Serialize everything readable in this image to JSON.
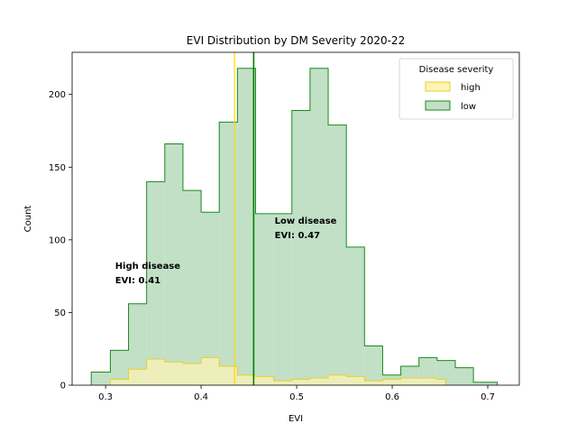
{
  "chart_data": {
    "type": "histogram",
    "title": "EVI Distribution by DM Severity 2020-22",
    "xlabel": "EVI",
    "ylabel": "Count",
    "xlim": [
      0.265,
      0.733
    ],
    "ylim": [
      0,
      229
    ],
    "xticks": [
      0.3,
      0.4,
      0.5,
      0.6,
      0.7
    ],
    "xtick_labels": [
      "0.3",
      "0.4",
      "0.5",
      "0.6",
      "0.7"
    ],
    "yticks": [
      0,
      50,
      100,
      150,
      200
    ],
    "ytick_labels": [
      "0",
      "50",
      "100",
      "150",
      "200"
    ],
    "grid": false,
    "legend": {
      "title": "Disease severity",
      "placement": "top-right",
      "entries": [
        "high",
        "low"
      ]
    },
    "bin_edges": [
      0.285,
      0.305,
      0.324,
      0.343,
      0.362,
      0.381,
      0.4,
      0.419,
      0.438,
      0.457,
      0.476,
      0.495,
      0.514,
      0.533,
      0.552,
      0.571,
      0.59,
      0.609,
      0.628,
      0.647,
      0.666,
      0.685,
      0.71
    ],
    "series": [
      {
        "name": "high",
        "fill": "#fff3b3",
        "stroke": "#e6cf2e",
        "bin_edges": [
          0.305,
          0.324,
          0.343,
          0.362,
          0.381,
          0.4,
          0.419,
          0.438,
          0.457,
          0.476,
          0.495,
          0.514,
          0.533,
          0.552,
          0.571,
          0.59,
          0.609,
          0.628,
          0.647,
          0.656
        ],
        "values": [
          4,
          11,
          18,
          16,
          15,
          19,
          13,
          7,
          6,
          3,
          4,
          5,
          7,
          6,
          3,
          4,
          5,
          5,
          4
        ]
      },
      {
        "name": "low",
        "fill": "#c2e0c6",
        "stroke": "#1a8a1a",
        "bin_edges": [
          0.285,
          0.305,
          0.324,
          0.343,
          0.362,
          0.381,
          0.4,
          0.419,
          0.438,
          0.457,
          0.476,
          0.495,
          0.514,
          0.533,
          0.552,
          0.571,
          0.59,
          0.609,
          0.628,
          0.647,
          0.666,
          0.685,
          0.71
        ],
        "values": [
          9,
          24,
          56,
          140,
          166,
          134,
          119,
          181,
          218,
          118,
          118,
          189,
          218,
          179,
          95,
          27,
          7,
          13,
          19,
          17,
          12,
          2
        ]
      }
    ],
    "vlines": [
      {
        "x": 0.435,
        "color": "#ffd700"
      },
      {
        "x": 0.455,
        "color": "#008000"
      }
    ],
    "annotations": [
      {
        "lines": [
          "High disease",
          "EVI: 0.41"
        ],
        "x": 0.31,
        "y": 80
      },
      {
        "lines": [
          "Low disease",
          "EVI: 0.47"
        ],
        "x": 0.477,
        "y": 111
      }
    ]
  }
}
